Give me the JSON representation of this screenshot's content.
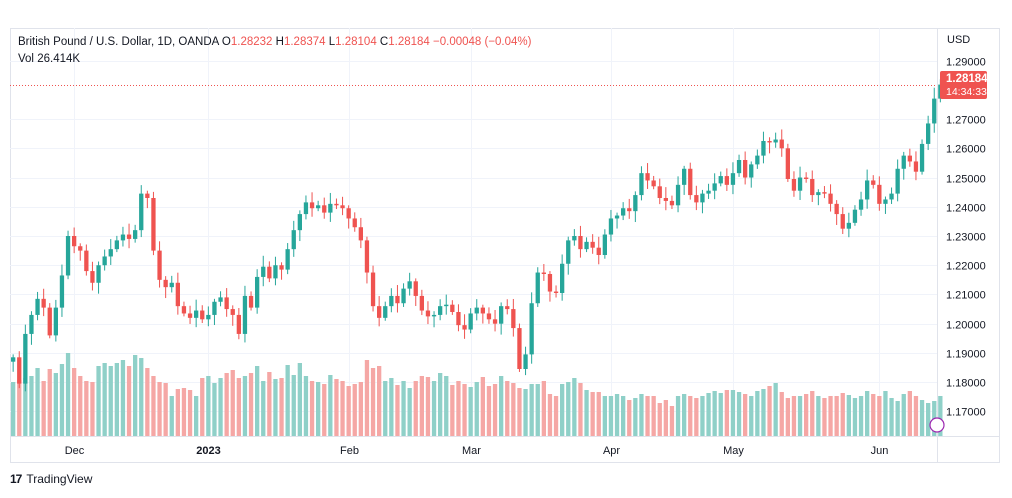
{
  "header": {
    "symbol": "British Pound / U.S. Dollar, 1D, OANDA",
    "o_label": "O",
    "o_value": "1.28232",
    "h_label": "H",
    "h_value": "1.28374",
    "l_label": "L",
    "l_value": "1.28104",
    "c_label": "C",
    "c_value": "1.28184",
    "change": "−0.00048 (−0.04%)",
    "vol_label": "Vol",
    "vol_value": "26.414K"
  },
  "price_axis": {
    "currency": "USD"
  },
  "last_price": {
    "price": "1.28184",
    "countdown": "14:34:33"
  },
  "footer": {
    "brand": "TradingView",
    "logo_glyph": "17"
  },
  "colors": {
    "up": "#26a69a",
    "down": "#ef5350",
    "up_vol": "#8fd0c8",
    "down_vol": "#f5a7a5"
  },
  "chart_data": {
    "type": "candlestick",
    "ylim": [
      1.165,
      1.295
    ],
    "yticks": [
      "1.17000",
      "1.18000",
      "1.19000",
      "1.20000",
      "1.21000",
      "1.22000",
      "1.23000",
      "1.24000",
      "1.25000",
      "1.26000",
      "1.27000",
      "1.29000"
    ],
    "xticks": [
      {
        "label": "Dec",
        "index": 10,
        "bold": false
      },
      {
        "label": "2023",
        "index": 32,
        "bold": true
      },
      {
        "label": "Feb",
        "index": 55,
        "bold": false
      },
      {
        "label": "Mar",
        "index": 75,
        "bold": false
      },
      {
        "label": "Apr",
        "index": 98,
        "bold": false
      },
      {
        "label": "May",
        "index": 118,
        "bold": false
      },
      {
        "label": "Jun",
        "index": 142,
        "bold": false
      }
    ],
    "closes": [
      1.1885,
      1.1795,
      1.1965,
      1.203,
      1.2085,
      1.2055,
      1.196,
      1.2055,
      1.2165,
      1.23,
      1.2265,
      1.225,
      1.218,
      1.214,
      1.22,
      1.223,
      1.2255,
      1.2285,
      1.2305,
      1.229,
      1.232,
      1.2445,
      1.243,
      1.225,
      1.215,
      1.2125,
      1.214,
      1.206,
      1.2035,
      1.202,
      1.2045,
      1.2015,
      1.203,
      1.2075,
      1.209,
      1.205,
      1.203,
      1.1965,
      1.2095,
      1.2055,
      1.216,
      1.2195,
      1.2155,
      1.22,
      1.2185,
      1.2255,
      1.232,
      1.2375,
      1.2415,
      1.2395,
      1.2405,
      1.238,
      1.241,
      1.2405,
      1.2395,
      1.236,
      1.233,
      1.2285,
      1.2175,
      1.206,
      1.202,
      1.206,
      1.2095,
      1.207,
      1.212,
      1.2145,
      1.2095,
      1.2045,
      1.2025,
      1.203,
      1.206,
      1.2065,
      1.204,
      1.1995,
      1.198,
      1.2035,
      1.2055,
      1.2035,
      1.2015,
      1.2,
      1.206,
      1.205,
      1.1985,
      1.1845,
      1.1895,
      1.207,
      1.2175,
      1.217,
      1.211,
      1.2105,
      1.2205,
      1.2285,
      1.23,
      1.2255,
      1.228,
      1.226,
      1.2235,
      1.2305,
      1.236,
      1.237,
      1.2395,
      1.2385,
      1.244,
      1.2515,
      1.249,
      1.247,
      1.243,
      1.242,
      1.2405,
      1.2475,
      1.253,
      1.244,
      1.2415,
      1.2445,
      1.2455,
      1.248,
      1.2505,
      1.2475,
      1.2515,
      1.256,
      1.25,
      1.2545,
      1.2575,
      1.2625,
      1.262,
      1.263,
      1.26,
      1.2495,
      1.2455,
      1.25,
      1.2495,
      1.244,
      1.245,
      1.2445,
      1.241,
      1.2375,
      1.2325,
      1.2345,
      1.239,
      1.2425,
      1.249,
      1.2475,
      1.241,
      1.2425,
      1.2445,
      1.253,
      1.2575,
      1.2555,
      1.252,
      1.2615,
      1.2685,
      1.277,
      1.2818
    ],
    "volumes": [
      0.54,
      0.56,
      0.58,
      0.6,
      0.68,
      0.55,
      0.67,
      0.63,
      0.72,
      0.83,
      0.68,
      0.6,
      0.55,
      0.54,
      0.7,
      0.73,
      0.7,
      0.73,
      0.76,
      0.7,
      0.81,
      0.78,
      0.68,
      0.6,
      0.54,
      0.53,
      0.4,
      0.47,
      0.48,
      0.46,
      0.4,
      0.58,
      0.6,
      0.53,
      0.58,
      0.63,
      0.66,
      0.58,
      0.6,
      0.63,
      0.7,
      0.55,
      0.64,
      0.57,
      0.58,
      0.71,
      0.61,
      0.73,
      0.6,
      0.55,
      0.54,
      0.52,
      0.61,
      0.57,
      0.55,
      0.5,
      0.52,
      0.54,
      0.76,
      0.68,
      0.7,
      0.55,
      0.58,
      0.51,
      0.55,
      0.48,
      0.55,
      0.6,
      0.59,
      0.55,
      0.63,
      0.6,
      0.51,
      0.55,
      0.52,
      0.49,
      0.54,
      0.59,
      0.5,
      0.52,
      0.6,
      0.55,
      0.53,
      0.48,
      0.47,
      0.52,
      0.52,
      0.55,
      0.42,
      0.4,
      0.52,
      0.54,
      0.58,
      0.53,
      0.46,
      0.44,
      0.44,
      0.4,
      0.4,
      0.42,
      0.4,
      0.36,
      0.38,
      0.42,
      0.4,
      0.4,
      0.33,
      0.36,
      0.3,
      0.4,
      0.42,
      0.4,
      0.38,
      0.4,
      0.43,
      0.45,
      0.43,
      0.46,
      0.46,
      0.44,
      0.42,
      0.4,
      0.45,
      0.47,
      0.5,
      0.53,
      0.44,
      0.38,
      0.4,
      0.4,
      0.42,
      0.45,
      0.4,
      0.38,
      0.4,
      0.4,
      0.43,
      0.41,
      0.38,
      0.4,
      0.45,
      0.42,
      0.4,
      0.45,
      0.38,
      0.35,
      0.42,
      0.45,
      0.4,
      0.36,
      0.33,
      0.35,
      0.4,
      0.3
    ]
  }
}
